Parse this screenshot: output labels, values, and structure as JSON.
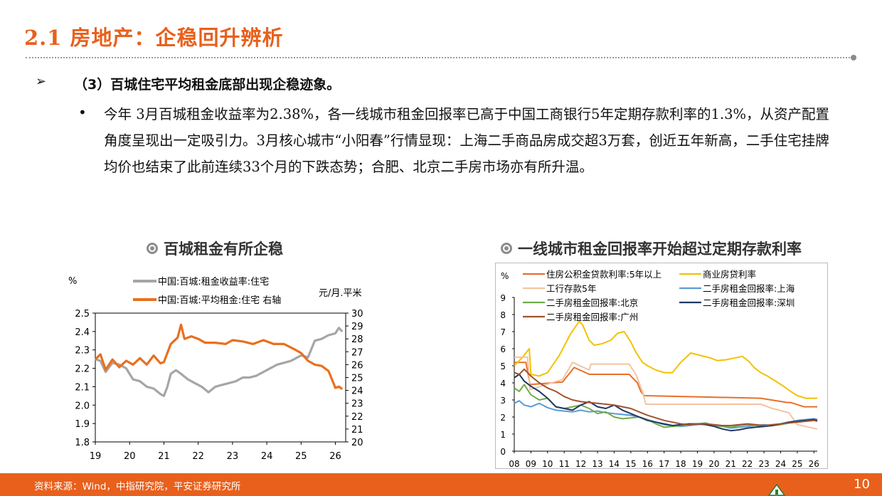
{
  "header": {
    "title": "2.1 房地产：企稳回升辨析"
  },
  "bullet": {
    "arrow": "➢",
    "heading": "（3）百城住宅平均租金底部出现企稳迹象。",
    "dot": "•",
    "paragraph": "今年 3月百城租金收益率为2.38%，各一线城市租金回报率已高于中国工商银行5年定期存款利率的1.3%，从资产配置角度呈现出一定吸引力。3月核心城市“小阳春”行情显现：上海二手商品房成交超3万套，创近五年新高，二手住宅挂牌均价也结束了此前连续33个月的下跌态势；合肥、北京二手房市场亦有所升温。"
  },
  "footer": {
    "source": "资料来源：Wind，中指研究院，平安证券研究所",
    "page": "10"
  },
  "colors": {
    "accent": "#e8601c",
    "footer_bar": "#e8601c"
  },
  "chart_data": [
    {
      "type": "line",
      "title": "百城租金有所企稳",
      "left_unit": "%",
      "right_unit": "元/月.平米",
      "ylim_left": [
        1.8,
        2.5
      ],
      "ylim_right": [
        20,
        30
      ],
      "x_ticks": [
        "19",
        "20",
        "21",
        "22",
        "23",
        "24",
        "25",
        "26"
      ],
      "y_ticks_left": [
        "2.5",
        "2.4",
        "2.3",
        "2.2",
        "2.1",
        "2.0",
        "1.9",
        "1.8"
      ],
      "y_ticks_right": [
        "30",
        "29",
        "28",
        "27",
        "26",
        "25",
        "24",
        "23",
        "22",
        "21",
        "20"
      ],
      "grid": false,
      "legend_position": "top",
      "series": [
        {
          "name": "中国:百城:租金收益率:住宅",
          "axis": "left",
          "color": "#a6a6a6",
          "x": [
            2019.0,
            2019.15,
            2019.3,
            2019.5,
            2019.7,
            2019.9,
            2020.1,
            2020.3,
            2020.5,
            2020.7,
            2020.9,
            2021.0,
            2021.1,
            2021.2,
            2021.35,
            2021.5,
            2021.7,
            2021.9,
            2022.1,
            2022.3,
            2022.5,
            2022.7,
            2022.9,
            2023.1,
            2023.3,
            2023.5,
            2023.7,
            2023.9,
            2024.1,
            2024.3,
            2024.5,
            2024.7,
            2024.9,
            2025.0,
            2025.2,
            2025.4,
            2025.6,
            2025.8,
            2026.0,
            2026.1,
            2026.2
          ],
          "y": [
            2.25,
            2.24,
            2.18,
            2.23,
            2.22,
            2.2,
            2.14,
            2.13,
            2.1,
            2.09,
            2.06,
            2.05,
            2.1,
            2.17,
            2.19,
            2.17,
            2.14,
            2.12,
            2.1,
            2.07,
            2.1,
            2.11,
            2.12,
            2.13,
            2.15,
            2.15,
            2.16,
            2.18,
            2.2,
            2.22,
            2.23,
            2.24,
            2.26,
            2.27,
            2.26,
            2.35,
            2.36,
            2.38,
            2.39,
            2.42,
            2.4
          ]
        },
        {
          "name": "中国:百城:平均租金:住宅 右轴",
          "axis": "right",
          "color": "#e8701e",
          "x": [
            2019.0,
            2019.15,
            2019.3,
            2019.5,
            2019.7,
            2019.9,
            2020.1,
            2020.3,
            2020.5,
            2020.7,
            2020.9,
            2021.0,
            2021.2,
            2021.4,
            2021.5,
            2021.6,
            2021.8,
            2022.0,
            2022.2,
            2022.5,
            2022.8,
            2023.0,
            2023.3,
            2023.6,
            2023.9,
            2024.2,
            2024.5,
            2024.8,
            2025.0,
            2025.2,
            2025.4,
            2025.6,
            2025.8,
            2026.0,
            2026.1,
            2026.2
          ],
          "y": [
            26.4,
            26.8,
            25.6,
            26.4,
            25.8,
            26.3,
            26.0,
            26.5,
            26.0,
            26.7,
            26.1,
            26.2,
            27.6,
            28.1,
            29.1,
            28.0,
            28.2,
            28.0,
            27.7,
            27.7,
            27.6,
            27.9,
            27.8,
            27.6,
            27.9,
            27.6,
            27.6,
            27.2,
            26.9,
            26.3,
            26.0,
            25.9,
            25.5,
            24.2,
            24.3,
            24.1
          ]
        }
      ]
    },
    {
      "type": "line",
      "title": "一线城市租金回报率开始超过定期存款利率",
      "y_unit": "%",
      "ylim": [
        0,
        9
      ],
      "x_ticks": [
        "08",
        "09",
        "10",
        "11",
        "12",
        "13",
        "14",
        "15",
        "16",
        "17",
        "18",
        "19",
        "20",
        "21",
        "22",
        "23",
        "24",
        "25",
        "26"
      ],
      "y_ticks": [
        "9",
        "8",
        "7",
        "6",
        "5",
        "4",
        "3",
        "2",
        "1",
        "0"
      ],
      "grid": false,
      "legend_position": "top",
      "series": [
        {
          "name": "住房公积金贷款利率:5年以上",
          "color": "#e8702a",
          "x": [
            2008.0,
            2008.7,
            2008.95,
            2010.9,
            2011.6,
            2012.5,
            2014.9,
            2015.4,
            2015.6,
            2015.8,
            2022.8,
            2024.4,
            2024.6,
            2025.4,
            2026.2
          ],
          "y": [
            5.2,
            5.2,
            3.9,
            4.05,
            4.9,
            4.5,
            4.5,
            4.0,
            3.5,
            3.25,
            3.1,
            2.85,
            2.85,
            2.6,
            2.6
          ]
        },
        {
          "name": "商业房贷利率",
          "color": "#f2c200",
          "x": [
            2008.0,
            2008.5,
            2008.9,
            2009.0,
            2009.5,
            2010.0,
            2010.7,
            2011.4,
            2011.9,
            2012.1,
            2012.5,
            2012.8,
            2013.3,
            2013.8,
            2014.2,
            2014.6,
            2015.0,
            2015.3,
            2015.7,
            2016.0,
            2016.5,
            2017.0,
            2017.5,
            2018.0,
            2018.6,
            2019.2,
            2019.8,
            2020.2,
            2020.7,
            2021.2,
            2021.7,
            2022.1,
            2022.4,
            2022.8,
            2023.2,
            2023.7,
            2024.1,
            2024.6,
            2025.0,
            2025.5,
            2026.2
          ],
          "y": [
            5.0,
            5.5,
            6.0,
            4.5,
            4.4,
            4.6,
            5.6,
            6.9,
            7.6,
            7.4,
            6.5,
            6.2,
            6.3,
            6.5,
            6.9,
            7.0,
            6.4,
            5.8,
            5.2,
            5.0,
            4.75,
            4.6,
            4.6,
            5.2,
            5.75,
            5.6,
            5.45,
            5.3,
            5.35,
            5.45,
            5.55,
            5.25,
            4.9,
            4.6,
            4.4,
            4.1,
            3.85,
            3.5,
            3.25,
            3.1,
            3.1
          ]
        },
        {
          "name": "工行存款5年",
          "color": "#f3c4a3",
          "x": [
            2008.0,
            2008.8,
            2008.95,
            2010.9,
            2011.5,
            2012.5,
            2012.6,
            2014.9,
            2015.3,
            2015.7,
            2015.9,
            2022.8,
            2023.5,
            2024.5,
            2025.0,
            2026.2
          ],
          "y": [
            5.5,
            5.5,
            3.6,
            4.2,
            5.2,
            4.75,
            5.1,
            5.1,
            4.5,
            3.5,
            2.75,
            2.75,
            2.5,
            2.25,
            1.55,
            1.3
          ]
        },
        {
          "name": "二手房租金回报率:上海",
          "color": "#5b9bd5",
          "x": [
            2008.0,
            2008.3,
            2008.6,
            2009.0,
            2009.5,
            2010.0,
            2010.5,
            2011.0,
            2011.5,
            2012.0,
            2012.5,
            2013.0,
            2013.5,
            2014.0,
            2014.5,
            2015.0,
            2015.5,
            2016.0,
            2016.5,
            2017.0,
            2017.5,
            2018.0,
            2018.5,
            2019.0,
            2019.5,
            2020.0,
            2020.5,
            2021.0,
            2021.5,
            2022.0,
            2022.5,
            2023.0,
            2023.5,
            2024.0,
            2024.5,
            2025.0,
            2025.5,
            2026.0,
            2026.2
          ],
          "y": [
            2.8,
            2.95,
            2.7,
            2.6,
            2.8,
            2.55,
            2.4,
            2.35,
            2.3,
            2.4,
            2.3,
            2.35,
            2.25,
            2.2,
            2.15,
            2.1,
            2.0,
            1.85,
            1.7,
            1.55,
            1.5,
            1.45,
            1.5,
            1.55,
            1.6,
            1.5,
            1.45,
            1.35,
            1.4,
            1.45,
            1.5,
            1.55,
            1.5,
            1.6,
            1.7,
            1.8,
            1.85,
            1.9,
            1.85
          ]
        },
        {
          "name": "二手房租金回报率:北京",
          "color": "#70ad47",
          "x": [
            2008.0,
            2008.3,
            2008.6,
            2009.0,
            2009.5,
            2010.0,
            2010.5,
            2011.0,
            2011.5,
            2012.0,
            2012.5,
            2013.0,
            2013.5,
            2014.0,
            2014.5,
            2015.0,
            2015.5,
            2016.0,
            2016.5,
            2017.0,
            2017.5,
            2018.0,
            2018.5,
            2019.0,
            2019.5,
            2020.0,
            2020.5,
            2021.0,
            2021.5,
            2022.0,
            2022.5,
            2023.0,
            2023.5,
            2024.0,
            2024.5,
            2025.0,
            2025.5,
            2026.0,
            2026.2
          ],
          "y": [
            3.7,
            3.5,
            3.9,
            3.3,
            3.0,
            3.1,
            2.6,
            2.5,
            2.6,
            2.7,
            2.5,
            2.2,
            2.3,
            2.0,
            1.9,
            1.95,
            2.0,
            1.85,
            1.6,
            1.4,
            1.45,
            1.5,
            1.55,
            1.6,
            1.65,
            1.5,
            1.45,
            1.4,
            1.5,
            1.55,
            1.5,
            1.45,
            1.5,
            1.55,
            1.65,
            1.75,
            1.8,
            1.85,
            1.8
          ]
        },
        {
          "name": "二手房租金回报率:深圳",
          "color": "#1f3864",
          "x": [
            2008.0,
            2008.3,
            2008.6,
            2009.0,
            2009.5,
            2010.0,
            2010.5,
            2011.0,
            2011.5,
            2012.0,
            2012.5,
            2013.0,
            2013.5,
            2014.0,
            2014.5,
            2015.0,
            2015.5,
            2016.0,
            2016.5,
            2017.0,
            2017.5,
            2018.0,
            2018.5,
            2019.0,
            2019.5,
            2020.0,
            2020.5,
            2021.0,
            2021.5,
            2022.0,
            2022.5,
            2023.0,
            2023.5,
            2024.0,
            2024.5,
            2025.0,
            2025.5,
            2026.0,
            2026.2
          ],
          "y": [
            4.3,
            4.5,
            4.1,
            3.8,
            3.5,
            3.1,
            2.6,
            2.5,
            2.4,
            2.7,
            2.9,
            2.6,
            2.5,
            2.7,
            2.4,
            2.2,
            2.0,
            1.8,
            1.7,
            1.6,
            1.5,
            1.55,
            1.6,
            1.6,
            1.55,
            1.45,
            1.3,
            1.2,
            1.25,
            1.35,
            1.4,
            1.45,
            1.5,
            1.6,
            1.7,
            1.75,
            1.8,
            1.85,
            1.8
          ]
        },
        {
          "name": "二手房租金回报率:广州",
          "color": "#a0522d",
          "x": [
            2008.0,
            2008.3,
            2008.6,
            2009.0,
            2009.5,
            2010.0,
            2010.5,
            2011.0,
            2011.5,
            2012.0,
            2012.5,
            2013.0,
            2013.5,
            2014.0,
            2014.5,
            2015.0,
            2015.5,
            2016.0,
            2016.5,
            2017.0,
            2017.5,
            2018.0,
            2018.5,
            2019.0,
            2019.5,
            2020.0,
            2020.5,
            2021.0,
            2021.5,
            2022.0,
            2022.5,
            2023.0,
            2023.5,
            2024.0,
            2024.5,
            2025.0,
            2025.5,
            2026.0,
            2026.2
          ],
          "y": [
            4.6,
            4.5,
            4.8,
            4.4,
            4.0,
            3.7,
            3.5,
            3.2,
            3.0,
            2.9,
            2.85,
            2.8,
            2.75,
            2.7,
            2.6,
            2.5,
            2.3,
            2.1,
            1.95,
            1.8,
            1.7,
            1.6,
            1.55,
            1.6,
            1.6,
            1.55,
            1.5,
            1.5,
            1.55,
            1.6,
            1.55,
            1.5,
            1.55,
            1.6,
            1.65,
            1.7,
            1.75,
            1.8,
            1.75
          ]
        }
      ]
    }
  ]
}
